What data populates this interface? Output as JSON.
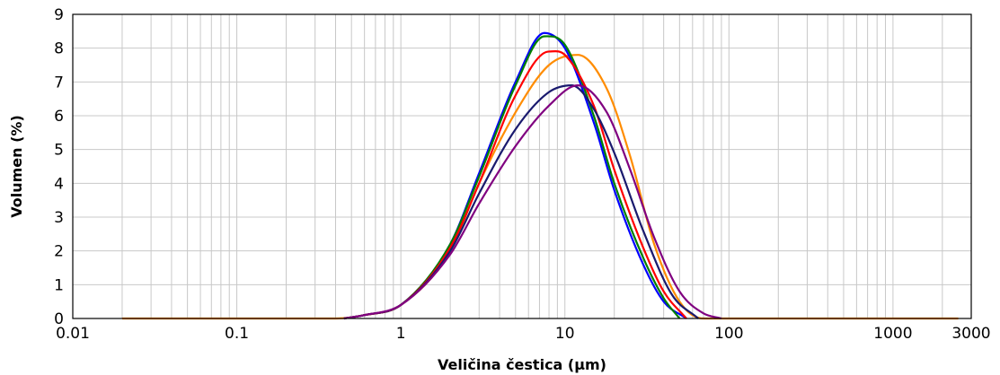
{
  "chart_data": {
    "type": "line",
    "title": "",
    "xlabel": "Veličina čestica (µm)",
    "ylabel": "Volumen (%)",
    "x_scale": "log",
    "xlim": [
      0.01,
      3000
    ],
    "ylim": [
      0,
      9
    ],
    "x_ticks": [
      0.01,
      0.1,
      1,
      10,
      100,
      1000,
      3000
    ],
    "x_tick_labels": [
      "0.01",
      "0.1",
      "1",
      "10",
      "100",
      "1000",
      "3000"
    ],
    "y_ticks": [
      0,
      1,
      2,
      3,
      4,
      5,
      6,
      7,
      8,
      9
    ],
    "y_tick_labels": [
      "0",
      "1",
      "2",
      "3",
      "4",
      "5",
      "6",
      "7",
      "8",
      "9"
    ],
    "grid": true,
    "series": [
      {
        "color": "#ff8c00",
        "x": [
          0.02,
          0.4,
          0.6,
          1,
          2,
          3,
          5,
          8,
          12,
          18,
          25,
          35,
          50,
          70,
          100,
          1000,
          2500
        ],
        "y": [
          0,
          0,
          0.1,
          0.4,
          2.0,
          4.0,
          6.1,
          7.5,
          7.8,
          6.8,
          4.8,
          2.2,
          0.5,
          0,
          0,
          0,
          0
        ]
      },
      {
        "color": "#0000ff",
        "x": [
          0.45,
          0.6,
          1,
          2,
          3,
          5,
          7.5,
          10,
          15,
          20,
          30,
          40,
          55
        ],
        "y": [
          0,
          0.1,
          0.4,
          2.2,
          4.3,
          7.0,
          8.45,
          8.0,
          5.8,
          3.8,
          1.6,
          0.5,
          0
        ]
      },
      {
        "color": "#008000",
        "x": [
          0.45,
          0.6,
          1,
          2,
          3,
          5,
          7.5,
          10,
          15,
          20,
          30,
          40,
          50
        ],
        "y": [
          0,
          0.1,
          0.4,
          2.2,
          4.2,
          6.9,
          8.35,
          8.1,
          6.0,
          4.0,
          1.8,
          0.6,
          0
        ]
      },
      {
        "color": "#ff0000",
        "x": [
          0.45,
          0.6,
          1,
          2,
          3,
          5,
          8,
          10,
          15,
          20,
          30,
          40,
          55
        ],
        "y": [
          0,
          0.1,
          0.4,
          2.1,
          4.0,
          6.6,
          7.9,
          7.8,
          6.3,
          4.4,
          2.1,
          0.8,
          0
        ]
      },
      {
        "color": "#1a1a6e",
        "x": [
          0.45,
          0.6,
          1,
          2,
          3,
          5,
          8,
          11,
          15,
          20,
          30,
          45,
          65
        ],
        "y": [
          0,
          0.1,
          0.4,
          2.0,
          3.7,
          5.6,
          6.7,
          6.9,
          6.2,
          4.9,
          2.6,
          0.7,
          0
        ]
      },
      {
        "color": "#800080",
        "x": [
          0.45,
          0.6,
          1,
          2,
          3,
          5,
          8,
          12,
          18,
          25,
          35,
          50,
          70,
          90
        ],
        "y": [
          0,
          0.1,
          0.4,
          1.9,
          3.4,
          5.1,
          6.3,
          6.9,
          6.1,
          4.4,
          2.4,
          0.8,
          0.15,
          0
        ]
      }
    ]
  }
}
